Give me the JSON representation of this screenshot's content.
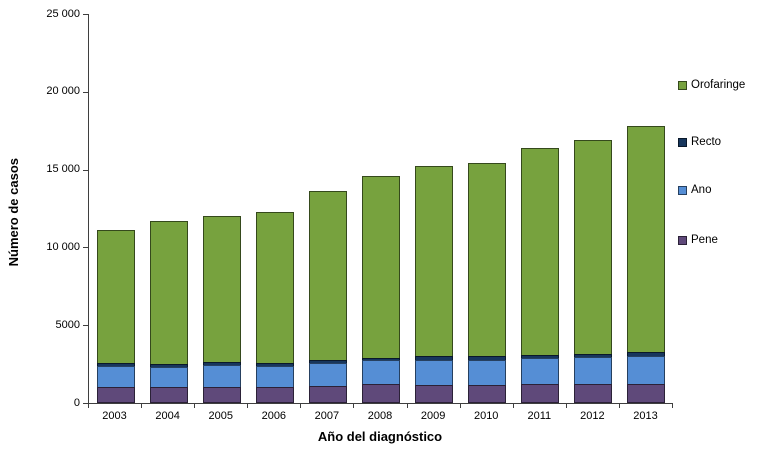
{
  "chart_data": {
    "type": "bar",
    "stacked": true,
    "title": "",
    "xlabel": "Año del diagnóstico",
    "ylabel": "Número de casos",
    "ylim": [
      0,
      25000
    ],
    "grid": false,
    "legend_position": "right",
    "categories": [
      "2003",
      "2004",
      "2005",
      "2006",
      "2007",
      "2008",
      "2009",
      "2010",
      "2011",
      "2012",
      "2013"
    ],
    "series": [
      {
        "name": "Pene",
        "color": "#5F497A",
        "values": [
          1000,
          1000,
          1000,
          1000,
          1100,
          1200,
          1150,
          1150,
          1200,
          1200,
          1250
        ]
      },
      {
        "name": "Ano",
        "color": "#558ED5",
        "values": [
          1450,
          1400,
          1500,
          1450,
          1550,
          1600,
          1700,
          1700,
          1750,
          1800,
          1850
        ]
      },
      {
        "name": "Recto",
        "color": "#17365D",
        "values": [
          250,
          250,
          250,
          250,
          250,
          250,
          280,
          280,
          280,
          300,
          300
        ]
      },
      {
        "name": "Orofaringe",
        "color": "#77A23E",
        "values": [
          8600,
          9250,
          9450,
          9800,
          10900,
          11750,
          12270,
          12470,
          13370,
          13800,
          14600
        ]
      }
    ],
    "totals": [
      11300,
      11900,
      12200,
      12500,
      13800,
      14800,
      15400,
      15600,
      16600,
      17100,
      18000
    ],
    "legend_order": [
      "Orofaringe",
      "Recto",
      "Ano",
      "Pene"
    ],
    "yticks": [
      {
        "value": 0,
        "label": "0"
      },
      {
        "value": 5000,
        "label": "5000"
      },
      {
        "value": 10000,
        "label": "10 000"
      },
      {
        "value": 15000,
        "label": "15 000"
      },
      {
        "value": 20000,
        "label": "20 000"
      },
      {
        "value": 25000,
        "label": "25 000"
      }
    ]
  }
}
